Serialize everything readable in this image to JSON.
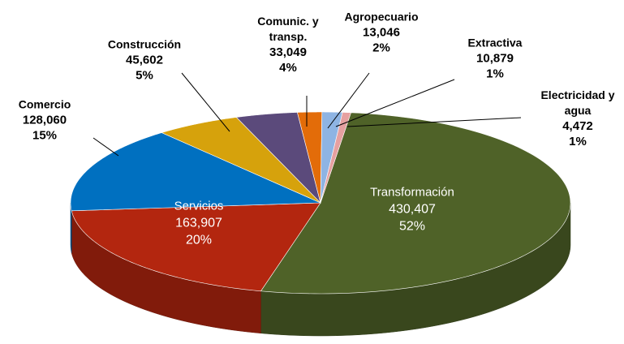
{
  "chart_data": {
    "type": "pie3d",
    "categories": [
      "Transformación",
      "Servicios",
      "Comercio",
      "Construcción",
      "Comunic. y transp.",
      "Agropecuario",
      "Extractiva",
      "Electricidad y agua"
    ],
    "values": [
      430407,
      163907,
      128060,
      45602,
      33049,
      13046,
      10879,
      4472
    ],
    "value_labels": [
      "430,407",
      "163,907",
      "128,060",
      "45,602",
      "33,049",
      "13,046",
      "10,879",
      "4,472"
    ],
    "percents": [
      52,
      20,
      15,
      5,
      4,
      2,
      1,
      1
    ],
    "percent_labels": [
      "52%",
      "20%",
      "15%",
      "5%",
      "4%",
      "2%",
      "1%",
      "1%"
    ],
    "colors": [
      "#4f6228",
      "#b3260f",
      "#0070c0",
      "#d6a20c",
      "#5b4a7b",
      "#e36c09",
      "#8eb4e3",
      "#e6a0a0"
    ]
  }
}
